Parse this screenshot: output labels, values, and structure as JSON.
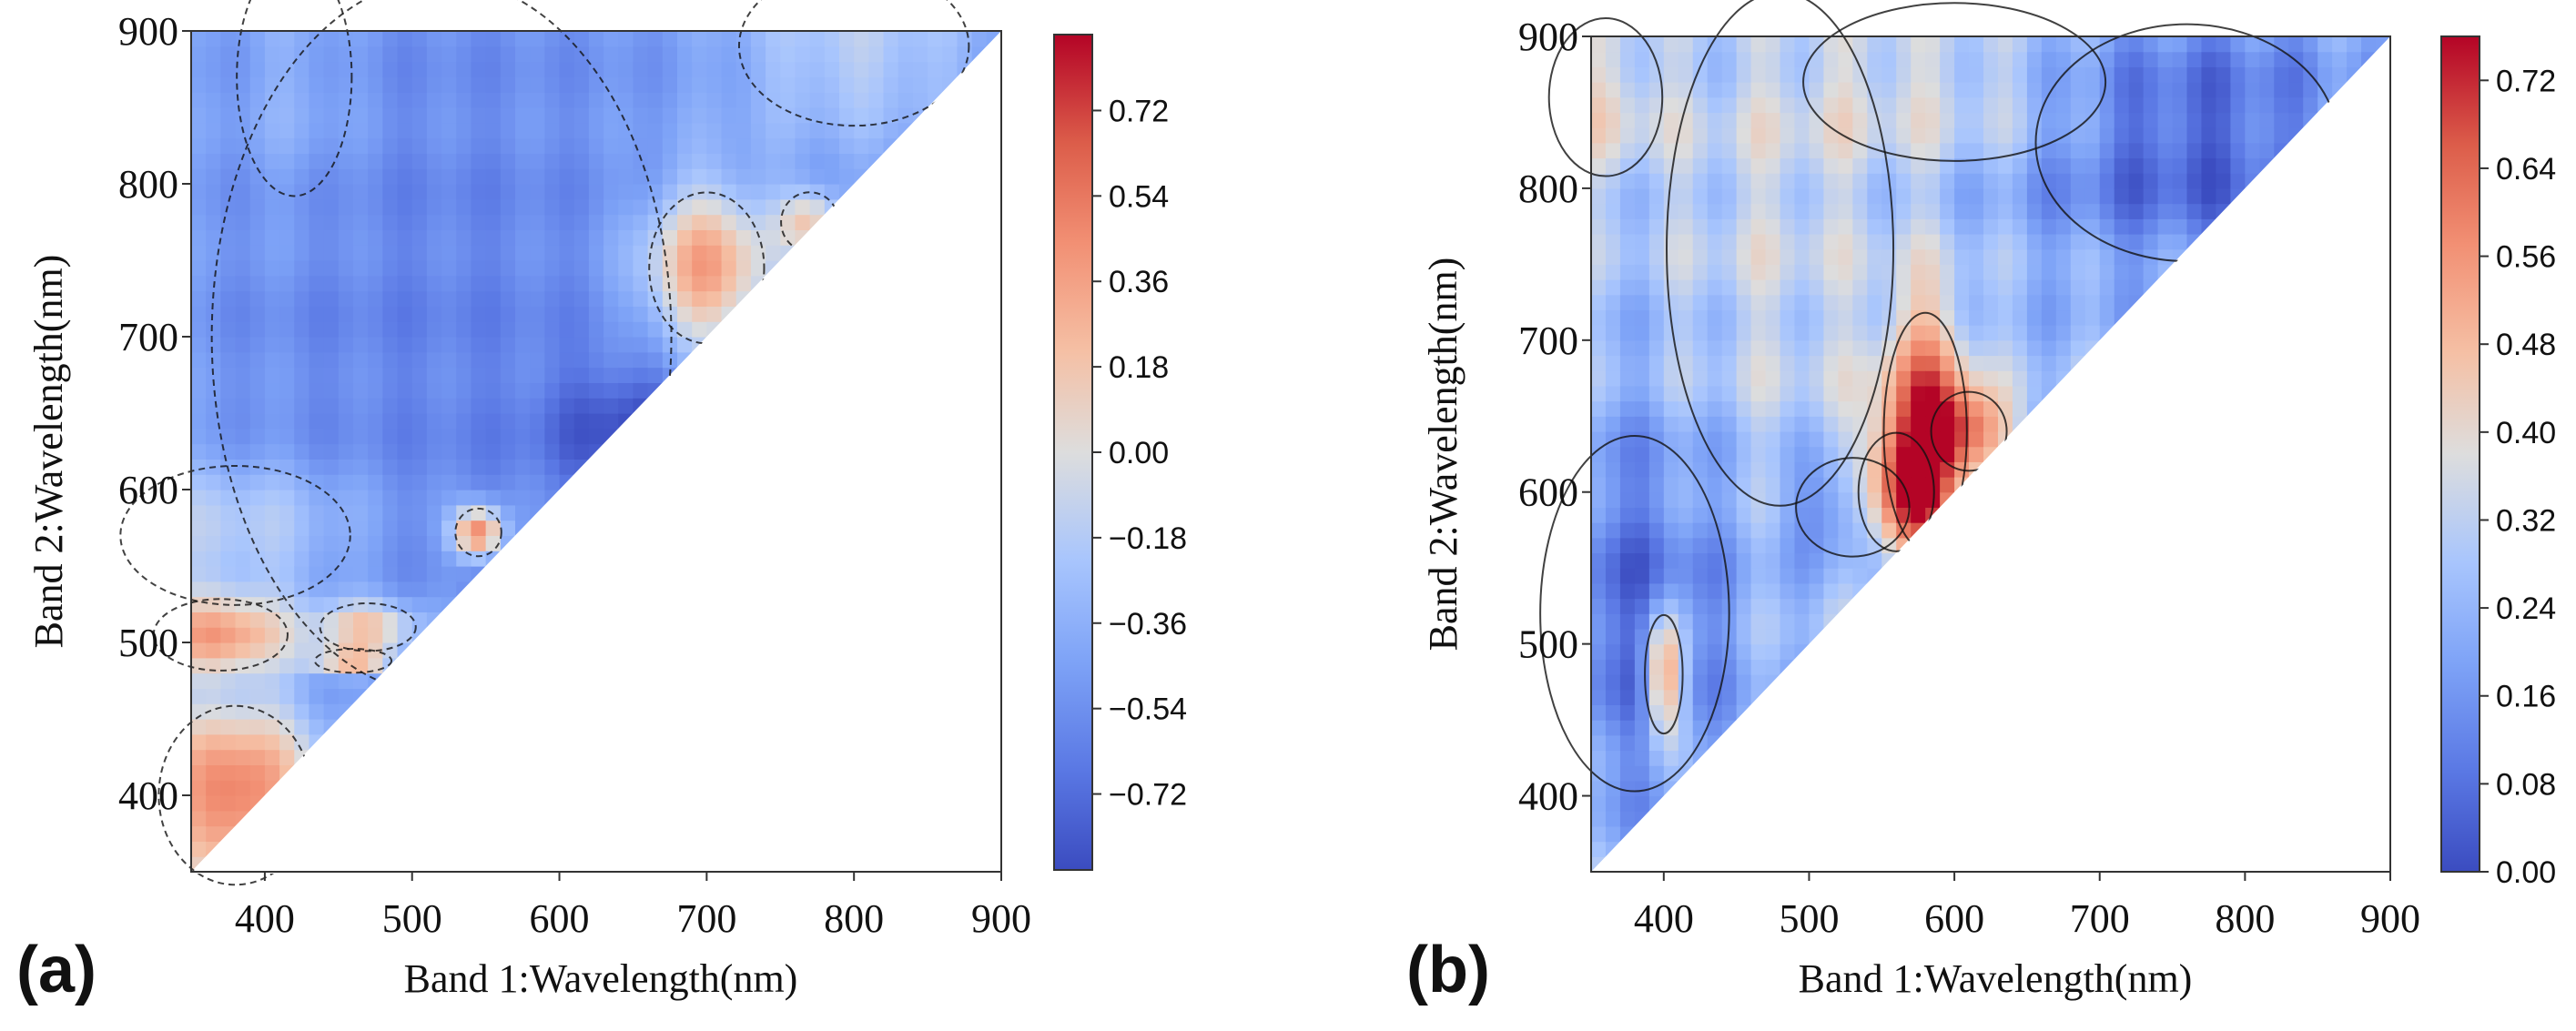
{
  "figure": {
    "panels": [
      "(a)",
      "(b)"
    ]
  },
  "colors": {
    "low": "#3b4cc0",
    "mid": "#dddddd",
    "high": "#b40426"
  },
  "chart_data": [
    {
      "type": "heatmap",
      "label": "(a)",
      "title": "",
      "xlabel": "Band 1:Wavelength(nm)",
      "ylabel": "Band 2:Wavelength(nm)",
      "xlim": [
        350,
        900
      ],
      "ylim": [
        350,
        900
      ],
      "xticks": [
        400,
        500,
        600,
        700,
        800,
        900
      ],
      "yticks": [
        400,
        500,
        600,
        700,
        800,
        900
      ],
      "mask": "lower-triangle (Band 2 < Band 1) empty",
      "colorbar": {
        "min": -0.88,
        "max": 0.88,
        "ticks": [
          0.72,
          0.54,
          0.36,
          0.18,
          0.0,
          -0.18,
          -0.36,
          -0.54,
          -0.72
        ],
        "tick_labels": [
          "0.72",
          "0.54",
          "0.36",
          "0.18",
          "0.00",
          "−0.18",
          "−0.36",
          "−0.54",
          "−0.72"
        ]
      },
      "base_value": -0.45,
      "features": [
        {
          "x": 700,
          "y": 745,
          "sx": 30,
          "sy": 38,
          "amp": 0.85
        },
        {
          "x": 770,
          "y": 775,
          "sx": 15,
          "sy": 15,
          "amp": 0.6
        },
        {
          "x": 545,
          "y": 572,
          "sx": 12,
          "sy": 12,
          "amp": 1.05
        },
        {
          "x": 380,
          "y": 400,
          "sx": 40,
          "sy": 45,
          "amp": 1.0
        },
        {
          "x": 370,
          "y": 505,
          "sx": 35,
          "sy": 18,
          "amp": 0.75
        },
        {
          "x": 470,
          "y": 510,
          "sx": 25,
          "sy": 12,
          "amp": 0.65
        },
        {
          "x": 460,
          "y": 488,
          "sx": 20,
          "sy": 6,
          "amp": 0.7
        },
        {
          "x": 380,
          "y": 570,
          "sx": 60,
          "sy": 35,
          "amp": 0.35
        },
        {
          "x": 800,
          "y": 890,
          "sx": 60,
          "sy": 40,
          "amp": 0.3
        },
        {
          "x": 420,
          "y": 870,
          "sx": 30,
          "sy": 60,
          "amp": 0.15
        },
        {
          "x": 650,
          "y": 640,
          "sx": 40,
          "sy": 30,
          "amp": -0.35
        },
        {
          "x": 520,
          "y": 700,
          "sx": 120,
          "sy": 180,
          "amp": -0.15
        }
      ]
    },
    {
      "type": "heatmap",
      "label": "(b)",
      "title": "",
      "xlabel": "Band 1:Wavelength(nm)",
      "ylabel": "Band 2:Wavelength(nm)",
      "xlim": [
        350,
        900
      ],
      "ylim": [
        350,
        900
      ],
      "xticks": [
        400,
        500,
        600,
        700,
        800,
        900
      ],
      "yticks": [
        400,
        500,
        600,
        700,
        800,
        900
      ],
      "mask": "lower-triangle (Band 2 < Band 1) empty",
      "colorbar": {
        "min": 0.0,
        "max": 0.76,
        "ticks": [
          0.72,
          0.64,
          0.56,
          0.48,
          0.4,
          0.32,
          0.24,
          0.16,
          0.08,
          0.0
        ],
        "tick_labels": [
          "0.72",
          "0.64",
          "0.56",
          "0.48",
          "0.40",
          "0.32",
          "0.24",
          "0.16",
          "0.08",
          "0.00"
        ]
      },
      "base_value": 0.26,
      "features": [
        {
          "x": 580,
          "y": 640,
          "sx": 22,
          "sy": 60,
          "amp": 0.4
        },
        {
          "x": 610,
          "y": 640,
          "sx": 20,
          "sy": 20,
          "amp": 0.3
        },
        {
          "x": 760,
          "y": 830,
          "sx": 80,
          "sy": 60,
          "amp": -0.22
        },
        {
          "x": 380,
          "y": 520,
          "sx": 50,
          "sy": 90,
          "amp": -0.2
        },
        {
          "x": 400,
          "y": 480,
          "sx": 10,
          "sy": 30,
          "amp": 0.4
        },
        {
          "x": 530,
          "y": 590,
          "sx": 30,
          "sy": 25,
          "amp": -0.2
        },
        {
          "x": 560,
          "y": 600,
          "sx": 20,
          "sy": 30,
          "amp": 0.35
        },
        {
          "x": 480,
          "y": 760,
          "sx": 60,
          "sy": 130,
          "amp": 0.08
        },
        {
          "x": 600,
          "y": 870,
          "sx": 80,
          "sy": 40,
          "amp": 0.1
        },
        {
          "x": 360,
          "y": 860,
          "sx": 30,
          "sy": 40,
          "amp": 0.12
        }
      ]
    }
  ]
}
